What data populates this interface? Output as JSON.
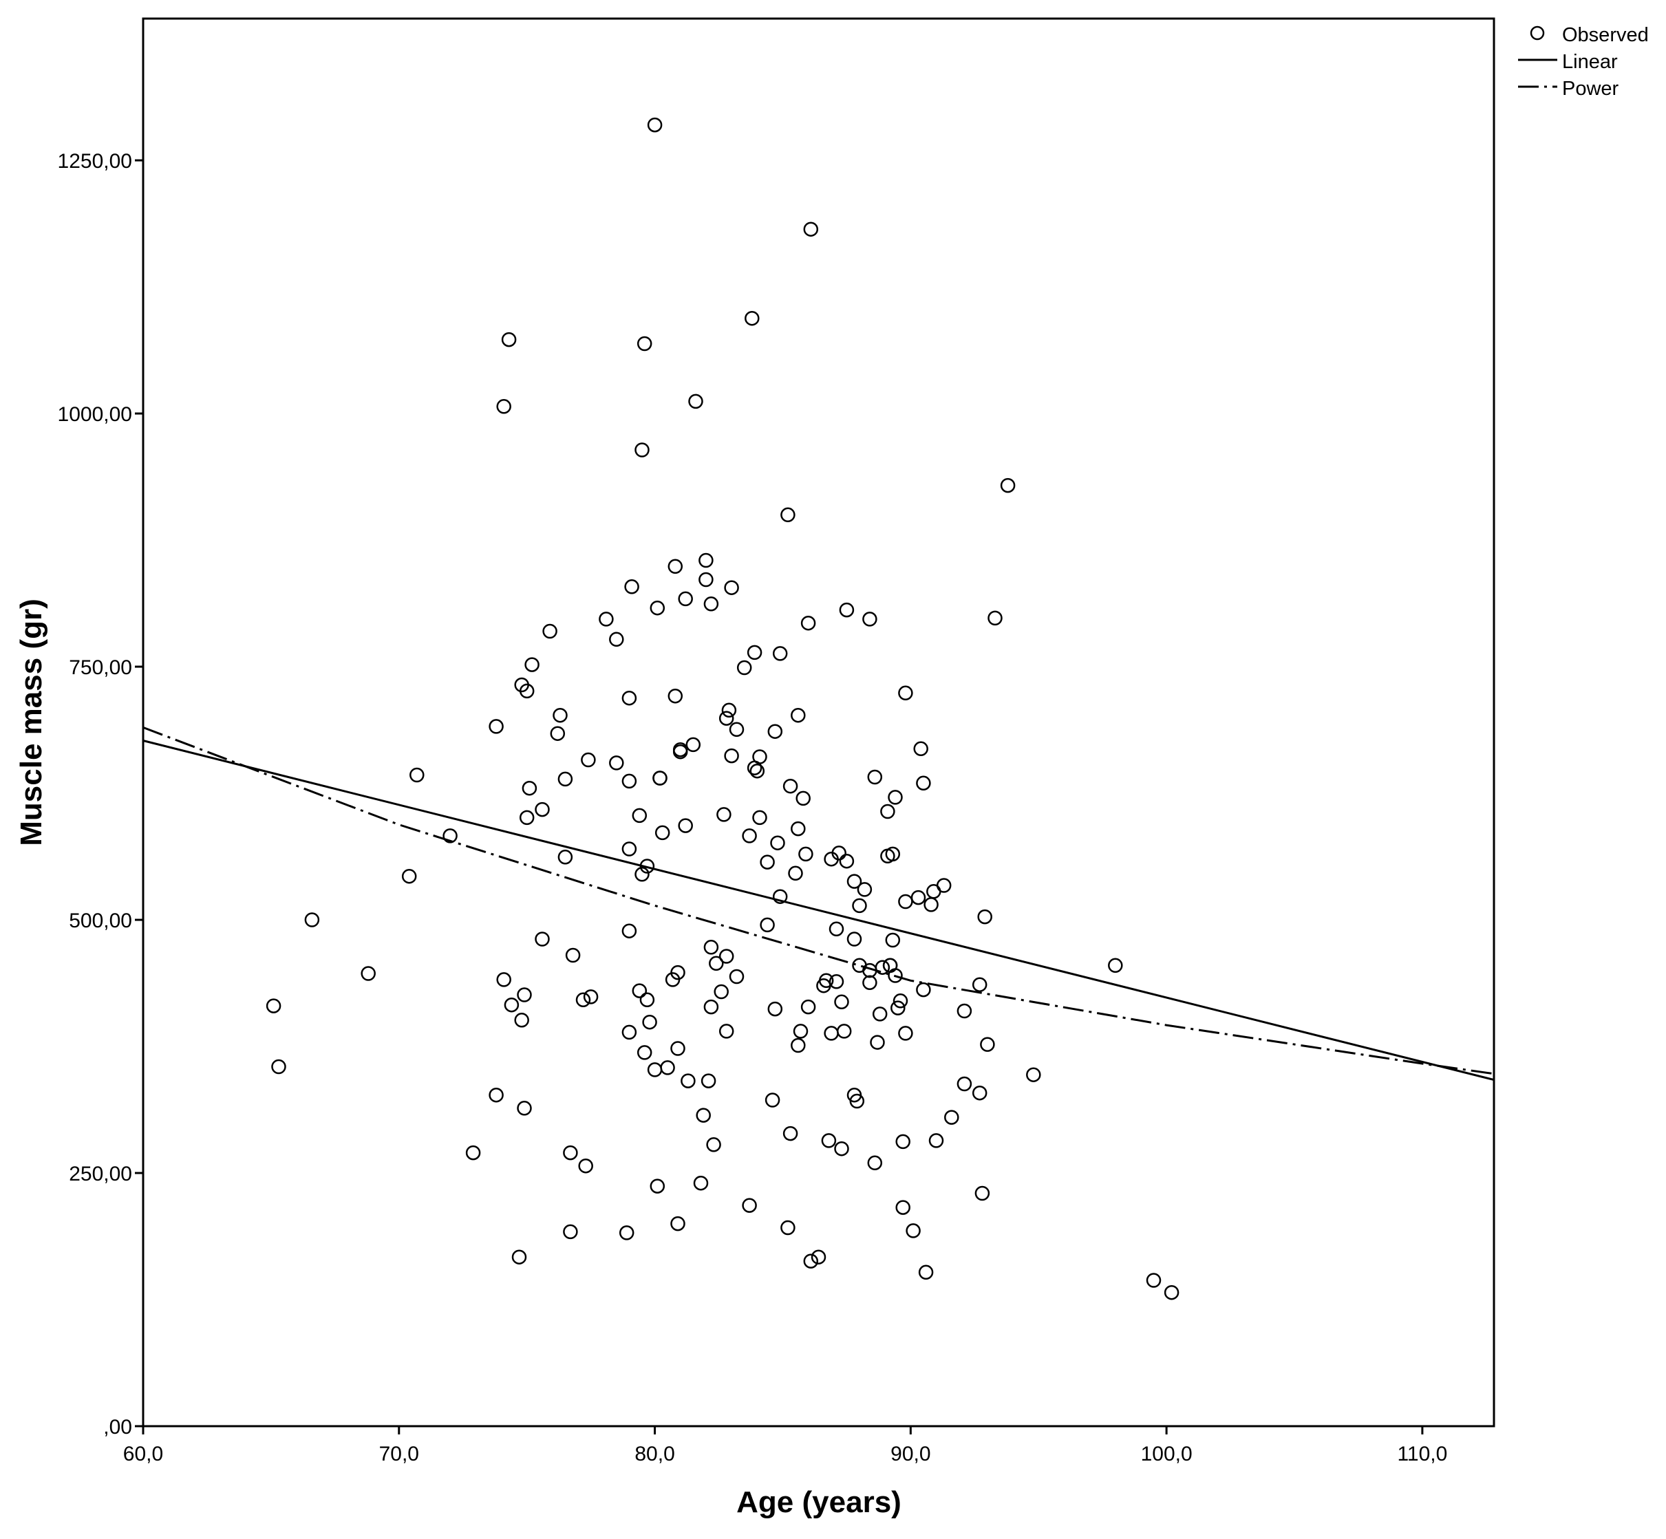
{
  "chart_data": {
    "type": "scatter",
    "title": "",
    "xlabel": "Age (years)",
    "ylabel": "Muscle mass (gr)",
    "xlim": [
      60,
      112.8
    ],
    "ylim": [
      0,
      1390
    ],
    "x_ticks": [
      60,
      70,
      80,
      90,
      100,
      110
    ],
    "x_tick_labels": [
      "60,0",
      "70,0",
      "80,0",
      "90,0",
      "100,0",
      "110,0"
    ],
    "y_ticks": [
      0,
      250,
      500,
      750,
      1000,
      1250
    ],
    "y_tick_labels": [
      ",00",
      "250,00",
      "500,00",
      "750,00",
      "1000,00",
      "1250,00"
    ],
    "grid": false,
    "legend_position": "top-right, outside plot",
    "legend": [
      {
        "label": "Observed",
        "symbol": "open-circle"
      },
      {
        "label": "Linear",
        "symbol": "solid-line"
      },
      {
        "label": "Power",
        "symbol": "dash-dot-line"
      }
    ],
    "series": [
      {
        "name": "Observed",
        "kind": "points",
        "points": [
          [
            65.1,
            415
          ],
          [
            65.3,
            355
          ],
          [
            66.6,
            500
          ],
          [
            68.8,
            447
          ],
          [
            70.4,
            543
          ],
          [
            70.7,
            643
          ],
          [
            72.0,
            583
          ],
          [
            72.9,
            270
          ],
          [
            73.8,
            691
          ],
          [
            73.8,
            327
          ],
          [
            74.1,
            1007
          ],
          [
            74.1,
            441
          ],
          [
            74.3,
            1073
          ],
          [
            74.4,
            416
          ],
          [
            74.7,
            167
          ],
          [
            74.8,
            732
          ],
          [
            74.8,
            401
          ],
          [
            74.9,
            426
          ],
          [
            74.9,
            314
          ],
          [
            75.0,
            726
          ],
          [
            75.0,
            601
          ],
          [
            75.1,
            630
          ],
          [
            75.2,
            752
          ],
          [
            75.6,
            609
          ],
          [
            75.6,
            481
          ],
          [
            75.9,
            785
          ],
          [
            76.2,
            684
          ],
          [
            76.3,
            702
          ],
          [
            76.5,
            639
          ],
          [
            76.5,
            562
          ],
          [
            76.7,
            270
          ],
          [
            76.7,
            192
          ],
          [
            76.8,
            465
          ],
          [
            77.2,
            421
          ],
          [
            77.3,
            257
          ],
          [
            77.4,
            658
          ],
          [
            77.5,
            424
          ],
          [
            78.1,
            797
          ],
          [
            78.5,
            777
          ],
          [
            78.5,
            655
          ],
          [
            78.9,
            191
          ],
          [
            79.0,
            719
          ],
          [
            79.0,
            637
          ],
          [
            79.0,
            570
          ],
          [
            79.0,
            489
          ],
          [
            79.0,
            389
          ],
          [
            79.1,
            829
          ],
          [
            79.4,
            603
          ],
          [
            79.4,
            430
          ],
          [
            79.5,
            964
          ],
          [
            79.5,
            545
          ],
          [
            79.6,
            1069
          ],
          [
            79.6,
            369
          ],
          [
            79.7,
            553
          ],
          [
            79.7,
            421
          ],
          [
            79.8,
            399
          ],
          [
            80.0,
            1285
          ],
          [
            80.0,
            352
          ],
          [
            80.1,
            808
          ],
          [
            80.1,
            237
          ],
          [
            80.2,
            640
          ],
          [
            80.2,
            640
          ],
          [
            80.3,
            586
          ],
          [
            80.5,
            354
          ],
          [
            80.7,
            441
          ],
          [
            80.8,
            849
          ],
          [
            80.8,
            721
          ],
          [
            80.9,
            448
          ],
          [
            80.9,
            373
          ],
          [
            80.9,
            200
          ],
          [
            81.0,
            668
          ],
          [
            81.0,
            666
          ],
          [
            81.2,
            817
          ],
          [
            81.2,
            593
          ],
          [
            81.3,
            341
          ],
          [
            81.5,
            673
          ],
          [
            81.6,
            1012
          ],
          [
            81.8,
            240
          ],
          [
            81.9,
            307
          ],
          [
            82.0,
            855
          ],
          [
            82.0,
            836
          ],
          [
            82.1,
            341
          ],
          [
            82.2,
            812
          ],
          [
            82.2,
            473
          ],
          [
            82.2,
            414
          ],
          [
            82.3,
            278
          ],
          [
            82.4,
            457
          ],
          [
            82.6,
            429
          ],
          [
            82.7,
            604
          ],
          [
            82.8,
            464
          ],
          [
            82.8,
            390
          ],
          [
            82.8,
            699
          ],
          [
            82.9,
            707
          ],
          [
            83.0,
            662
          ],
          [
            83.0,
            828
          ],
          [
            83.2,
            688
          ],
          [
            83.2,
            444
          ],
          [
            83.5,
            749
          ],
          [
            83.7,
            583
          ],
          [
            83.7,
            218
          ],
          [
            83.8,
            1094
          ],
          [
            83.9,
            650
          ],
          [
            83.9,
            764
          ],
          [
            84.0,
            647
          ],
          [
            84.1,
            661
          ],
          [
            84.1,
            601
          ],
          [
            84.4,
            557
          ],
          [
            84.4,
            495
          ],
          [
            84.6,
            322
          ],
          [
            84.7,
            686
          ],
          [
            84.7,
            412
          ],
          [
            84.8,
            576
          ],
          [
            84.9,
            763
          ],
          [
            84.9,
            523
          ],
          [
            85.2,
            900
          ],
          [
            85.2,
            196
          ],
          [
            85.3,
            289
          ],
          [
            85.3,
            632
          ],
          [
            85.5,
            546
          ],
          [
            85.6,
            702
          ],
          [
            85.6,
            590
          ],
          [
            85.6,
            376
          ],
          [
            85.7,
            390
          ],
          [
            85.8,
            620
          ],
          [
            85.9,
            565
          ],
          [
            86.0,
            793
          ],
          [
            86.0,
            414
          ],
          [
            86.1,
            1182
          ],
          [
            86.1,
            163
          ],
          [
            86.4,
            167
          ],
          [
            86.6,
            435
          ],
          [
            86.7,
            440
          ],
          [
            86.8,
            282
          ],
          [
            86.9,
            560
          ],
          [
            86.9,
            388
          ],
          [
            87.1,
            491
          ],
          [
            87.1,
            439
          ],
          [
            87.2,
            566
          ],
          [
            87.3,
            419
          ],
          [
            87.3,
            274
          ],
          [
            87.4,
            390
          ],
          [
            87.5,
            806
          ],
          [
            87.5,
            558
          ],
          [
            87.8,
            538
          ],
          [
            87.8,
            481
          ],
          [
            87.8,
            327
          ],
          [
            87.9,
            321
          ],
          [
            88.0,
            514
          ],
          [
            88.0,
            455
          ],
          [
            88.2,
            530
          ],
          [
            88.4,
            797
          ],
          [
            88.4,
            438
          ],
          [
            88.4,
            450
          ],
          [
            88.6,
            641
          ],
          [
            88.6,
            260
          ],
          [
            88.7,
            379
          ],
          [
            88.8,
            407
          ],
          [
            88.9,
            453
          ],
          [
            89.1,
            607
          ],
          [
            89.1,
            563
          ],
          [
            89.2,
            455
          ],
          [
            89.2,
            455
          ],
          [
            89.3,
            565
          ],
          [
            89.3,
            480
          ],
          [
            89.4,
            621
          ],
          [
            89.4,
            445
          ],
          [
            89.5,
            413
          ],
          [
            89.6,
            420
          ],
          [
            89.7,
            281
          ],
          [
            89.7,
            216
          ],
          [
            89.8,
            724
          ],
          [
            89.8,
            388
          ],
          [
            89.8,
            518
          ],
          [
            90.1,
            193
          ],
          [
            90.3,
            522
          ],
          [
            90.4,
            669
          ],
          [
            90.5,
            635
          ],
          [
            90.5,
            431
          ],
          [
            90.6,
            152
          ],
          [
            90.8,
            515
          ],
          [
            90.9,
            528
          ],
          [
            91.0,
            282
          ],
          [
            91.3,
            534
          ],
          [
            91.6,
            305
          ],
          [
            92.1,
            338
          ],
          [
            92.1,
            410
          ],
          [
            92.7,
            436
          ],
          [
            92.7,
            329
          ],
          [
            92.8,
            230
          ],
          [
            92.9,
            503
          ],
          [
            93.0,
            377
          ],
          [
            93.3,
            798
          ],
          [
            93.8,
            929
          ],
          [
            94.8,
            347
          ],
          [
            98.0,
            455
          ],
          [
            99.5,
            144
          ],
          [
            100.2,
            132
          ]
        ]
      },
      {
        "name": "Linear",
        "kind": "fit-line",
        "points": [
          [
            60,
            677
          ],
          [
            112.8,
            342
          ]
        ]
      },
      {
        "name": "Power",
        "kind": "fit-curve",
        "points": [
          [
            60,
            690
          ],
          [
            70,
            594
          ],
          [
            80,
            514
          ],
          [
            90,
            440
          ],
          [
            100,
            396
          ],
          [
            110,
            358
          ],
          [
            112.8,
            348
          ]
        ]
      }
    ]
  }
}
